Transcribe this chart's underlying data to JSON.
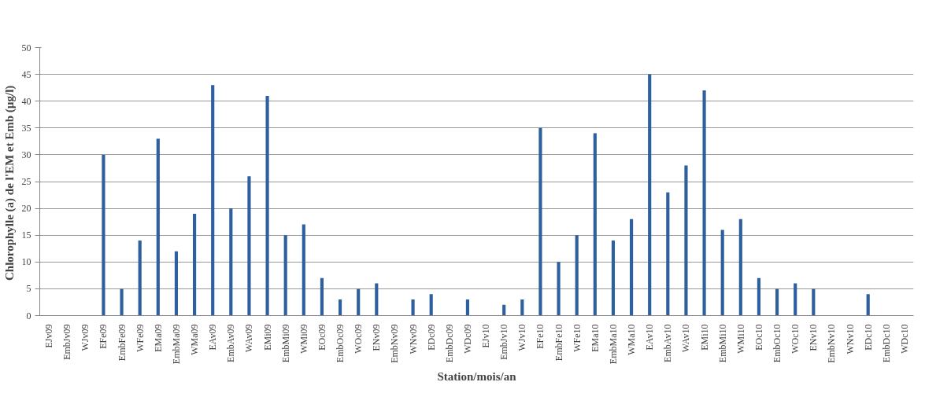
{
  "chart_data": {
    "type": "bar",
    "xlabel": "Station/mois/an",
    "ylabel": "Chlorophylle  (a) de l'EM et Emb (µg/l)",
    "categories": [
      "EJv09",
      "EmbJv09",
      "WJv09",
      "EFe09",
      "EmbFe09",
      "WFe09",
      "EMa09",
      "EmbMa09",
      "WMa09",
      "EAv09",
      "EmbAv09",
      "WAv09",
      "EMi09",
      "EmbMi09",
      "WMi09",
      "EOc09",
      "EmbOc09",
      "WOc09",
      "ENv09",
      "EmbNv09",
      "WNv09",
      "EDc09",
      "EmbDc09",
      "WDc09",
      "EJv10",
      "EmbJv10",
      "WJv10",
      "EFe10",
      "EmbFe10",
      "WFe10",
      "EMa10",
      "EmbMa10",
      "WMa10",
      "EAv10",
      "EmbAv10",
      "WAv10",
      "EMi10",
      "EmbMi10",
      "WMi10",
      "EOc10",
      "EmbOc10",
      "WOc10",
      "ENv10",
      "EmbNv10",
      "WNv10",
      "EDc10",
      "EmbDc10",
      "WDc10"
    ],
    "values": [
      0,
      0,
      0,
      30,
      5,
      14,
      33,
      12,
      19,
      43,
      20,
      26,
      41,
      15,
      17,
      7,
      3,
      5,
      6,
      0,
      3,
      4,
      0,
      3,
      0,
      2,
      3,
      35,
      10,
      15,
      34,
      14,
      18,
      45,
      23,
      28,
      42,
      16,
      18,
      7,
      5,
      6,
      5,
      0,
      0,
      4,
      0,
      0
    ],
    "color": "#2e5f9e",
    "ylim": [
      0,
      50
    ],
    "yticks": [
      0,
      5,
      10,
      15,
      20,
      25,
      30,
      35,
      40,
      45,
      50
    ],
    "grid": "y"
  }
}
